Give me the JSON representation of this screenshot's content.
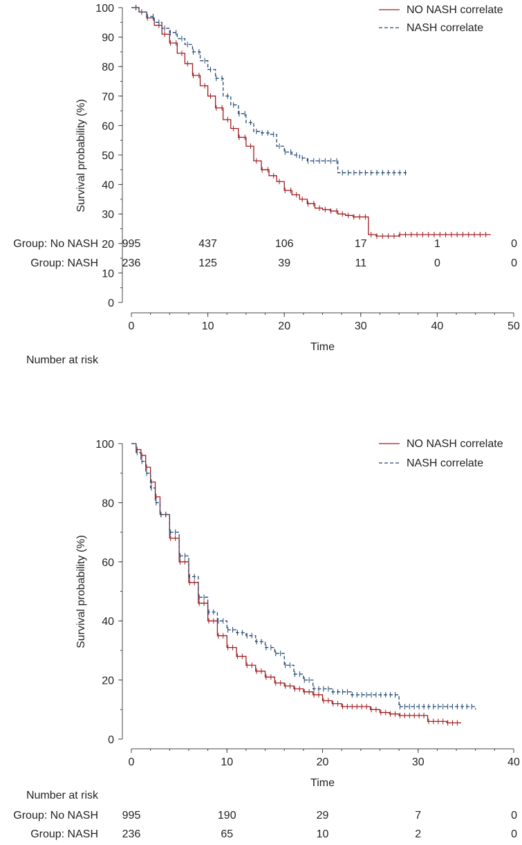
{
  "colors": {
    "no_nash": "#a0191d",
    "nash": "#1f4670",
    "axis": "#444444"
  },
  "chart_data": [
    {
      "type": "line",
      "subtype": "kaplan-meier",
      "title": "",
      "xlabel": "Time",
      "ylabel": "Survival probability (%)",
      "xlim": [
        0,
        50
      ],
      "ylim": [
        0,
        100
      ],
      "xticks": [
        "0",
        "10",
        "20",
        "30",
        "40",
        "50"
      ],
      "yticks": [
        "0",
        "10",
        "20",
        "30",
        "40",
        "50",
        "60",
        "70",
        "80",
        "90",
        "100"
      ],
      "legend": [
        "NO NASH correlate",
        "NASH correlate"
      ],
      "legend_position": "top-right",
      "series": [
        {
          "name": "NO NASH correlate",
          "x": [
            0,
            1,
            2,
            3,
            4,
            5,
            6,
            7,
            8,
            9,
            10,
            11,
            12,
            13,
            14,
            15,
            16,
            17,
            18,
            19,
            20,
            21,
            22,
            23,
            24,
            25,
            26,
            27,
            28,
            29,
            30,
            31,
            32,
            35,
            40,
            47
          ],
          "y": [
            100,
            98.5,
            96.5,
            94,
            91,
            88,
            84.5,
            81,
            77,
            73.5,
            70,
            66,
            62,
            59,
            56,
            53,
            48,
            45,
            43,
            41,
            38,
            36.5,
            35,
            33.5,
            32,
            31.5,
            31,
            30,
            29.5,
            29,
            29,
            23,
            22.5,
            23,
            23,
            23
          ]
        },
        {
          "name": "NASH correlate",
          "x": [
            0,
            1,
            2,
            3,
            4,
            5,
            6,
            7,
            8,
            9,
            10,
            11,
            12,
            13,
            14,
            15,
            16,
            17,
            18,
            19,
            20,
            21,
            22,
            23,
            24,
            25,
            26,
            27,
            28,
            29,
            30,
            31,
            32,
            33,
            34,
            35,
            36
          ],
          "y": [
            100,
            98.5,
            97,
            95,
            93,
            91.5,
            89.5,
            87.5,
            85,
            82,
            79,
            76,
            70,
            67,
            64,
            61,
            58,
            57.5,
            57,
            53,
            51,
            50,
            49,
            48,
            48,
            48,
            48,
            44,
            44,
            44,
            44,
            44,
            44,
            44,
            44,
            44,
            44
          ]
        }
      ],
      "risk_table": {
        "header": "Number at risk",
        "rows": [
          {
            "label": "Group: No NASH",
            "values": [
              "995",
              "437",
              "106",
              "17",
              "1",
              "0"
            ]
          },
          {
            "label": "Group: NASH",
            "values": [
              "236",
              "125",
              "39",
              "11",
              "0",
              "0"
            ]
          }
        ]
      }
    },
    {
      "type": "line",
      "subtype": "kaplan-meier",
      "title": "",
      "xlabel": "Time",
      "ylabel": "Survival probability (%)",
      "xlim": [
        0,
        40
      ],
      "ylim": [
        0,
        100
      ],
      "xticks": [
        "0",
        "10",
        "20",
        "30",
        "40"
      ],
      "yticks": [
        "0",
        "20",
        "40",
        "60",
        "80",
        "100"
      ],
      "legend": [
        "NO NASH correlate",
        "NASH correlate"
      ],
      "legend_position": "top-right",
      "series": [
        {
          "name": "NO NASH correlate",
          "x": [
            0,
            0.5,
            1,
            1.5,
            2,
            2.5,
            3,
            4,
            5,
            6,
            7,
            8,
            9,
            10,
            11,
            12,
            13,
            14,
            15,
            16,
            17,
            18,
            19,
            20,
            21,
            22,
            23,
            24,
            25,
            26,
            27,
            28,
            29,
            30,
            31,
            32,
            33,
            34,
            34.5
          ],
          "y": [
            100,
            98,
            96,
            92,
            87,
            82,
            76,
            68,
            60,
            53,
            46,
            40,
            35,
            31,
            28,
            25,
            23,
            21,
            19,
            18,
            17,
            16,
            15,
            13,
            12,
            11,
            11,
            11,
            10,
            9,
            8.5,
            8,
            8,
            8,
            6,
            6,
            5.5,
            5.5,
            5.5
          ]
        },
        {
          "name": "NASH correlate",
          "x": [
            0,
            0.5,
            1,
            1.5,
            2,
            2.5,
            3,
            4,
            5,
            6,
            7,
            8,
            9,
            10,
            11,
            12,
            13,
            14,
            15,
            16,
            17,
            18,
            19,
            20,
            21,
            22,
            23,
            24,
            25,
            26,
            27,
            28,
            29,
            30,
            31,
            32,
            33,
            34,
            35,
            36
          ],
          "y": [
            100,
            97,
            94,
            90,
            85,
            80,
            76,
            70,
            62,
            55,
            48,
            43,
            40,
            37,
            36,
            35,
            33,
            31,
            29,
            25,
            22,
            20,
            17,
            17,
            16,
            16,
            15,
            15,
            15,
            15,
            15,
            11,
            11,
            11,
            11,
            11,
            11,
            11,
            11,
            10
          ]
        }
      ],
      "risk_table": {
        "header": "Number at risk",
        "rows": [
          {
            "label": "Group: No NASH",
            "values": [
              "995",
              "190",
              "29",
              "7",
              "0"
            ]
          },
          {
            "label": "Group: NASH",
            "values": [
              "236",
              "65",
              "10",
              "2",
              "0"
            ]
          }
        ]
      }
    }
  ]
}
